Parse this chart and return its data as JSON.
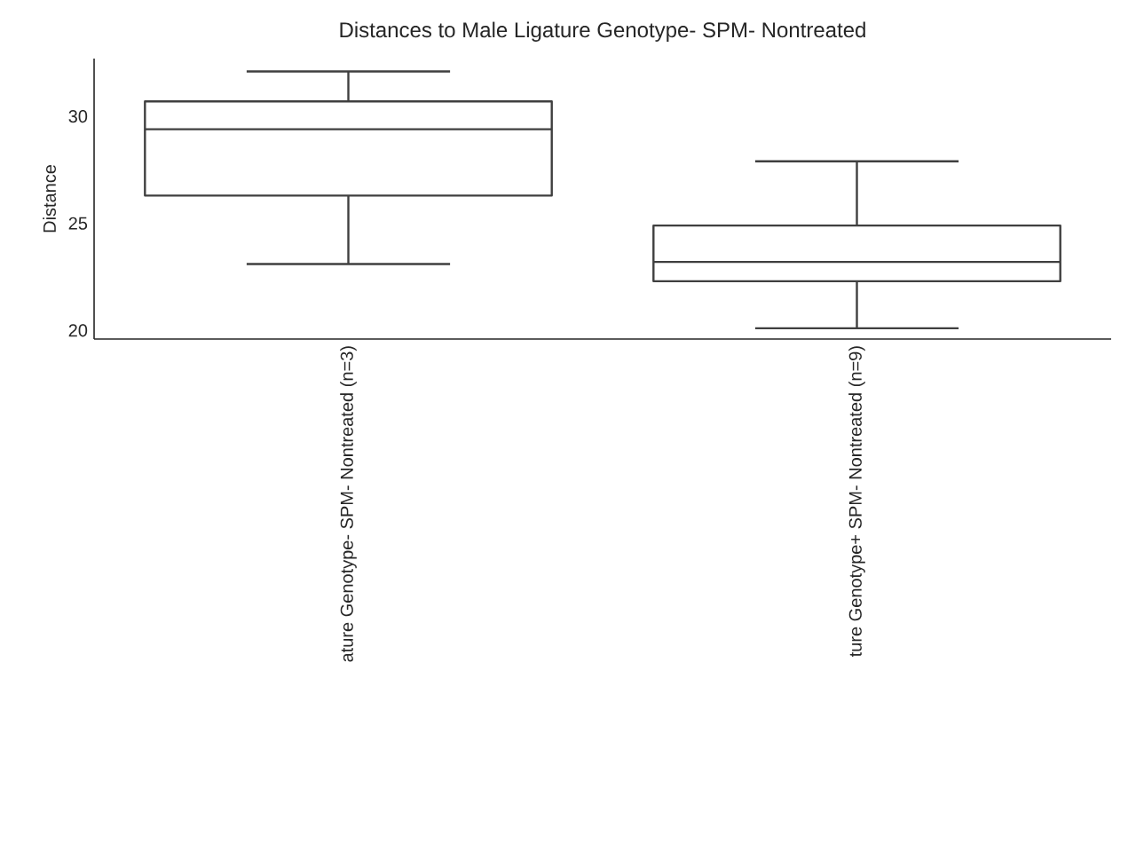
{
  "chart_data": {
    "type": "box",
    "title": "Distances to Male Ligature Genotype- SPM- Nontreated",
    "ylabel": "Distance",
    "categories": [
      "ature Genotype- SPM- Nontreated (n=3)",
      "ture Genotype+ SPM- Nontreated (n=9)"
    ],
    "boxes": [
      {
        "low": 23.1,
        "q1": 26.3,
        "median": 29.4,
        "q3": 30.7,
        "high": 32.1
      },
      {
        "low": 20.1,
        "q1": 22.3,
        "median": 23.2,
        "q3": 24.9,
        "high": 27.9
      }
    ],
    "color": "#3f3f3f",
    "ylim": [
      19.6,
      32.7
    ],
    "yticks": [
      20,
      25,
      30
    ],
    "grid": false
  }
}
